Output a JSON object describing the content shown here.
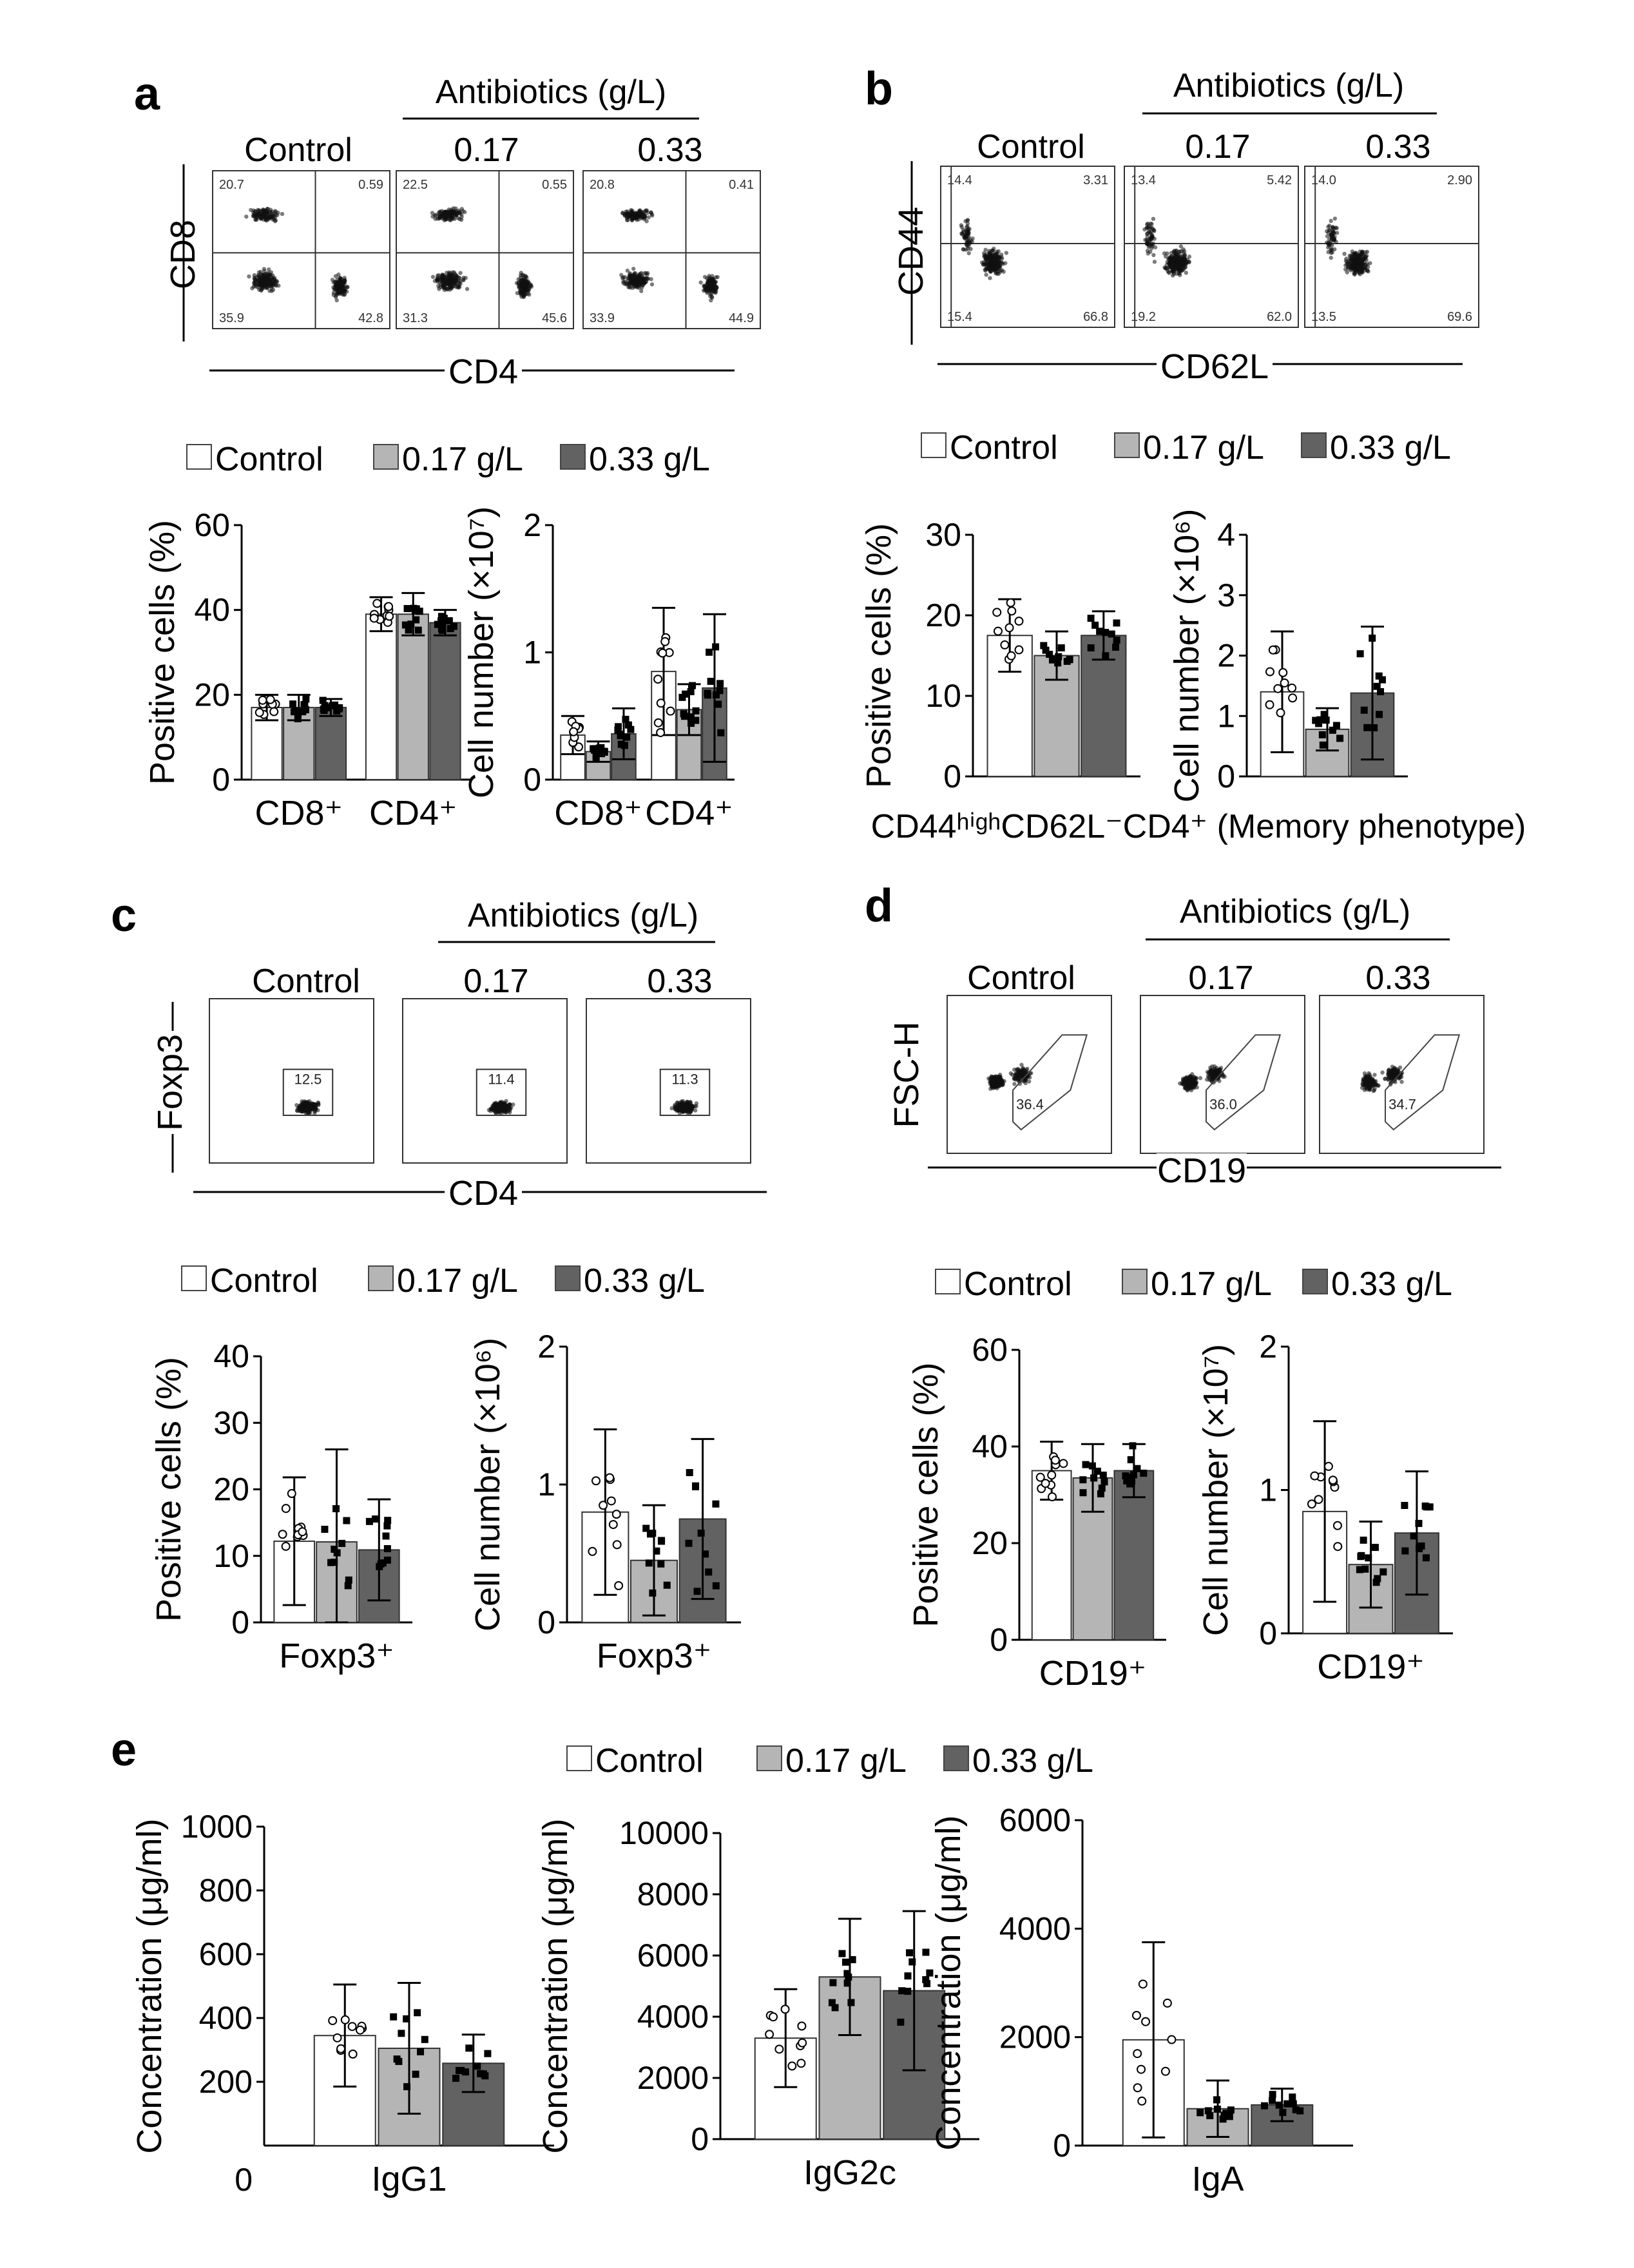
{
  "panels": {
    "a": {
      "label": "a",
      "antibiotics_label": "Antibiotics (g/L)",
      "col_titles": [
        "Control",
        "0.17",
        "0.33"
      ],
      "x_axis": "CD4",
      "y_axis": "CD8",
      "flow_quadrants": [
        [
          "20.7",
          "0.59",
          "35.9",
          "42.8"
        ],
        [
          "22.5",
          "0.55",
          "31.3",
          "45.6"
        ],
        [
          "20.8",
          "0.41",
          "33.9",
          "44.9"
        ]
      ],
      "legend": [
        "Control",
        "0.17 g/L",
        "0.33 g/L"
      ]
    },
    "b": {
      "label": "b",
      "antibiotics_label": "Antibiotics (g/L)",
      "col_titles": [
        "Control",
        "0.17",
        "0.33"
      ],
      "x_axis": "CD62L",
      "y_axis": "CD44",
      "flow_quadrants": [
        [
          "14.4",
          "3.31",
          "15.4",
          "66.8"
        ],
        [
          "13.4",
          "5.42",
          "19.2",
          "62.0"
        ],
        [
          "14.0",
          "2.90",
          "13.5",
          "69.6"
        ]
      ],
      "legend": [
        "Control",
        "0.17 g/L",
        "0.33 g/L"
      ],
      "caption": "CD44ʰⁱᵍʰCD62L⁻CD4⁺ (Memory phenotype)"
    },
    "c": {
      "label": "c",
      "antibiotics_label": "Antibiotics (g/L)",
      "col_titles": [
        "Control",
        "0.17",
        "0.33"
      ],
      "x_axis": "CD4",
      "y_axis": "Foxp3",
      "gate_values": [
        "12.5",
        "11.4",
        "11.3"
      ],
      "legend": [
        "Control",
        "0.17 g/L",
        "0.33 g/L"
      ]
    },
    "d": {
      "label": "d",
      "antibiotics_label": "Antibiotics (g/L)",
      "col_titles": [
        "Control",
        "0.17",
        "0.33"
      ],
      "x_axis": "CD19",
      "y_axis": "FSC-H",
      "gate_values": [
        "36.4",
        "36.0",
        "34.7"
      ],
      "legend": [
        "Control",
        "0.17 g/L",
        "0.33 g/L"
      ]
    },
    "e": {
      "label": "e",
      "legend": [
        "Control",
        "0.17 g/L",
        "0.33 g/L"
      ]
    }
  },
  "colors": {
    "control": "#ffffff",
    "low": "#b5b5b5",
    "high": "#626262",
    "axis": "#000000"
  },
  "chart_data": [
    {
      "id": "a1",
      "type": "bar",
      "ylabel": "Positive cells (%)",
      "ylim": [
        0,
        60
      ],
      "yticks": [
        "0",
        "20",
        "40",
        "60"
      ],
      "groups": [
        "CD8⁺",
        "CD4⁺"
      ],
      "series": [
        {
          "name": "Control",
          "values": [
            17,
            39
          ],
          "err": [
            3,
            4
          ]
        },
        {
          "name": "0.17 g/L",
          "values": [
            17,
            39
          ],
          "err": [
            3,
            5
          ]
        },
        {
          "name": "0.33 g/L",
          "values": [
            17,
            37
          ],
          "err": [
            2,
            3
          ]
        }
      ]
    },
    {
      "id": "a2",
      "type": "bar",
      "ylabel": "Cell number (×10⁷)",
      "ylim": [
        0,
        2
      ],
      "yticks": [
        "0",
        "1",
        "2"
      ],
      "groups": [
        "CD8⁺",
        "CD4⁺"
      ],
      "series": [
        {
          "name": "Control",
          "values": [
            0.35,
            0.85
          ],
          "err": [
            0.15,
            0.5
          ]
        },
        {
          "name": "0.17 g/L",
          "values": [
            0.22,
            0.55
          ],
          "err": [
            0.08,
            0.2
          ]
        },
        {
          "name": "0.33 g/L",
          "values": [
            0.36,
            0.72
          ],
          "err": [
            0.2,
            0.58
          ]
        }
      ]
    },
    {
      "id": "b1",
      "type": "bar",
      "ylabel": "Positive cells (%)",
      "ylim": [
        0,
        30
      ],
      "yticks": [
        "0",
        "10",
        "20",
        "30"
      ],
      "groups": [
        ""
      ],
      "series": [
        {
          "name": "Control",
          "values": [
            17.5
          ],
          "err": [
            4.5
          ]
        },
        {
          "name": "0.17 g/L",
          "values": [
            15
          ],
          "err": [
            3
          ]
        },
        {
          "name": "0.33 g/L",
          "values": [
            17.5
          ],
          "err": [
            3
          ]
        }
      ]
    },
    {
      "id": "b2",
      "type": "bar",
      "ylabel": "Cell number (×10⁶)",
      "ylim": [
        0,
        4
      ],
      "yticks": [
        "0",
        "1",
        "2",
        "3",
        "4"
      ],
      "groups": [
        ""
      ],
      "series": [
        {
          "name": "Control",
          "values": [
            1.4
          ],
          "err": [
            1.0
          ]
        },
        {
          "name": "0.17 g/L",
          "values": [
            0.78
          ],
          "err": [
            0.35
          ]
        },
        {
          "name": "0.33 g/L",
          "values": [
            1.38
          ],
          "err": [
            1.1
          ]
        }
      ]
    },
    {
      "id": "c1",
      "type": "bar",
      "ylabel": "Positive cells (%)",
      "ylim": [
        0,
        40
      ],
      "yticks": [
        "0",
        "10",
        "20",
        "30",
        "40"
      ],
      "groups": [
        "Foxp3⁺"
      ],
      "series": [
        {
          "name": "Control",
          "values": [
            12.2
          ],
          "err": [
            9.6
          ]
        },
        {
          "name": "0.17 g/L",
          "values": [
            12.1
          ],
          "err": [
            13.9
          ]
        },
        {
          "name": "0.33 g/L",
          "values": [
            10.9
          ],
          "err": [
            7.6
          ]
        }
      ]
    },
    {
      "id": "c2",
      "type": "bar",
      "ylabel": "Cell number (×10⁶)",
      "ylim": [
        0,
        2
      ],
      "yticks": [
        "0",
        "1",
        "2"
      ],
      "groups": [
        "Foxp3⁺"
      ],
      "series": [
        {
          "name": "Control",
          "values": [
            0.8
          ],
          "err": [
            0.6
          ]
        },
        {
          "name": "0.17 g/L",
          "values": [
            0.45
          ],
          "err": [
            0.4
          ]
        },
        {
          "name": "0.33 g/L",
          "values": [
            0.75
          ],
          "err": [
            0.58
          ]
        }
      ]
    },
    {
      "id": "d1",
      "type": "bar",
      "ylabel": "Positive cells (%)",
      "ylim": [
        0,
        60
      ],
      "yticks": [
        "0",
        "20",
        "40",
        "60"
      ],
      "groups": [
        "CD19⁺"
      ],
      "series": [
        {
          "name": "Control",
          "values": [
            35
          ],
          "err": [
            6
          ]
        },
        {
          "name": "0.17 g/L",
          "values": [
            33.5
          ],
          "err": [
            7
          ]
        },
        {
          "name": "0.33 g/L",
          "values": [
            35
          ],
          "err": [
            5.5
          ]
        }
      ]
    },
    {
      "id": "d2",
      "type": "bar",
      "ylabel": "Cell number (×10⁷)",
      "ylim": [
        0,
        2
      ],
      "yticks": [
        "0",
        "1",
        "2"
      ],
      "groups": [
        "CD19⁺"
      ],
      "series": [
        {
          "name": "Control",
          "values": [
            0.85
          ],
          "err": [
            0.63
          ]
        },
        {
          "name": "0.17 g/L",
          "values": [
            0.48
          ],
          "err": [
            0.3
          ]
        },
        {
          "name": "0.33 g/L",
          "values": [
            0.7
          ],
          "err": [
            0.43
          ]
        }
      ]
    },
    {
      "id": "e1",
      "type": "bar",
      "ylabel": "Concentration (μg/ml)",
      "ylim": [
        0,
        1000
      ],
      "yticks": [
        "200",
        "400",
        "600",
        "800",
        "1000"
      ],
      "show_zero_tick": true,
      "zero_label": "0",
      "groups": [
        "IgG1"
      ],
      "series": [
        {
          "name": "Control",
          "values": [
            345
          ],
          "err": [
            160
          ]
        },
        {
          "name": "0.17 g/L",
          "values": [
            305
          ],
          "err": [
            205
          ]
        },
        {
          "name": "0.33 g/L",
          "values": [
            258
          ],
          "err": [
            90
          ]
        }
      ]
    },
    {
      "id": "e2",
      "type": "bar",
      "ylabel": "Concentration (μg/ml)",
      "ylim": [
        0,
        10000
      ],
      "yticks": [
        "0",
        "2000",
        "4000",
        "6000",
        "8000",
        "10000"
      ],
      "groups": [
        "IgG2c"
      ],
      "series": [
        {
          "name": "Control",
          "values": [
            3300
          ],
          "err": [
            1600
          ]
        },
        {
          "name": "0.17 g/L",
          "values": [
            5300
          ],
          "err": [
            1900
          ]
        },
        {
          "name": "0.33 g/L",
          "values": [
            4850
          ],
          "err": [
            2600
          ]
        }
      ]
    },
    {
      "id": "e3",
      "type": "bar",
      "ylabel": "Concentration (μg/ml)",
      "ylim": [
        0,
        6000
      ],
      "yticks": [
        "0",
        "2000",
        "4000",
        "6000"
      ],
      "groups": [
        "IgA"
      ],
      "series": [
        {
          "name": "Control",
          "values": [
            1950
          ],
          "err": [
            1800
          ]
        },
        {
          "name": "0.17 g/L",
          "values": [
            680
          ],
          "err": [
            520
          ]
        },
        {
          "name": "0.33 g/L",
          "values": [
            750
          ],
          "err": [
            300
          ]
        }
      ]
    }
  ]
}
